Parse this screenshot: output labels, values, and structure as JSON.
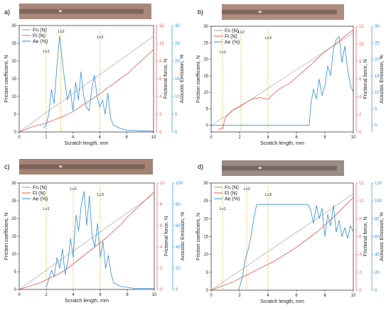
{
  "colors": {
    "fn": "#9a9a9a",
    "ft": "#f05454",
    "ae": "#2f8fd8",
    "lc": "#f2b233",
    "left_axis": "#222222",
    "right_axis_ft": "#f05454",
    "right_axis_ae": "#2f8fd8"
  },
  "chart_data": [
    {
      "panel": "a)",
      "type": "line",
      "xlabel": "Scratch length, mm",
      "ylabel_left": "Friction coefficient, N",
      "ylabel_ft": "Frictional force, N",
      "ylabel_ae": "Acoustic Emission, %",
      "xlim": [
        0,
        10
      ],
      "x_ticks": [
        "0",
        "2",
        "4",
        "6",
        "8",
        "10"
      ],
      "left_ylim": [
        0,
        30
      ],
      "left_ticks": [
        "0",
        "5",
        "10",
        "15",
        "20",
        "25",
        "30"
      ],
      "ft_ylim": [
        0,
        12
      ],
      "ft_ticks": [
        "0",
        "2",
        "4",
        "6",
        "8",
        "10",
        "12"
      ],
      "ae_ylim": [
        0,
        30
      ],
      "ae_ticks": [
        "0",
        "5",
        "10",
        "15",
        "20",
        "25",
        "30"
      ],
      "legend": [
        "Fn (N)",
        "Ft  (N)",
        "Ae (%)"
      ],
      "critical_loads": [
        {
          "label": "Lc1",
          "x": 2.0
        },
        {
          "label": "Lc2",
          "x": 3.1
        },
        {
          "label": "Lc3",
          "x": 6.0
        }
      ],
      "series": [
        {
          "name": "Fn (N)",
          "axis": "left",
          "x": [
            0,
            10
          ],
          "y": [
            0,
            27
          ]
        },
        {
          "name": "Ft  (N)",
          "axis": "ft",
          "x": [
            0,
            0.5,
            1,
            1.5,
            2,
            2.5,
            3,
            3.5,
            4,
            4.5,
            5,
            5.5,
            6,
            6.5,
            7,
            7.5,
            8,
            8.5,
            9,
            9.5,
            10
          ],
          "y": [
            0,
            0.3,
            0.6,
            0.8,
            1.0,
            1.3,
            1.6,
            1.9,
            2.3,
            2.8,
            3.3,
            3.8,
            4.3,
            4.9,
            5.4,
            6.0,
            6.5,
            7.2,
            7.9,
            8.6,
            9.3
          ]
        },
        {
          "name": "Ae (%)",
          "axis": "ae",
          "x": [
            1.8,
            2.0,
            2.2,
            2.4,
            2.6,
            2.8,
            3.0,
            3.1,
            3.2,
            3.4,
            3.6,
            3.8,
            4.0,
            4.2,
            4.4,
            4.6,
            4.8,
            5.0,
            5.2,
            5.4,
            5.6,
            5.8,
            6.0,
            6.2,
            6.4,
            6.6,
            6.8,
            7.0,
            7.5,
            8,
            8.5,
            9,
            9.5,
            10
          ],
          "y": [
            1,
            2,
            5,
            12,
            8,
            18,
            27,
            24,
            20,
            14,
            9,
            12,
            6,
            14,
            9,
            17,
            10,
            7,
            6,
            12,
            16,
            10,
            7,
            9,
            5,
            11,
            4,
            2,
            1,
            0.5,
            0.5,
            0.3,
            0.3,
            0.2
          ]
        }
      ]
    },
    {
      "panel": "b)",
      "type": "line",
      "xlabel": "Scratch length, mm",
      "ylabel_left": "Friction coefficient, N",
      "ylabel_ft": "Frictional force, N",
      "ylabel_ae": "Acoustic Emission, %",
      "xlim": [
        0,
        10
      ],
      "x_ticks": [
        "0",
        "2",
        "4",
        "6",
        "8",
        "10"
      ],
      "left_ylim": [
        -2,
        30
      ],
      "left_ticks": [
        "0",
        "5",
        "10",
        "15",
        "20",
        "25",
        "30"
      ],
      "ft_ylim": [
        0,
        12
      ],
      "ft_ticks": [
        "0",
        "2",
        "4",
        "6",
        "8",
        "10",
        "12"
      ],
      "ae_ylim": [
        -2,
        30
      ],
      "ae_ticks": [
        "0",
        "5",
        "10",
        "15",
        "20",
        "25",
        "30"
      ],
      "legend": [
        "Fn (N)",
        "Ft  (N)",
        "Ae (%)"
      ],
      "critical_loads": [
        {
          "label": "Lc1",
          "x": 0.8
        },
        {
          "label": "Lc2",
          "x": 2.1
        },
        {
          "label": "Lc3",
          "x": 4.0
        }
      ],
      "series": [
        {
          "name": "Fn (N)",
          "axis": "left",
          "x": [
            0,
            10
          ],
          "y": [
            0,
            28
          ]
        },
        {
          "name": "Ft  (N)",
          "axis": "ft",
          "x": [
            0.5,
            0.8,
            1,
            1.5,
            2,
            2.5,
            3,
            3.5,
            4,
            4.5,
            5,
            5.5,
            6,
            6.5,
            7,
            7.5,
            8,
            8.5,
            9,
            9.5,
            10
          ],
          "y": [
            0.3,
            0.4,
            1.6,
            2.5,
            2.9,
            3.4,
            3.8,
            3.9,
            3.7,
            4.5,
            5.1,
            5.5,
            6.2,
            6.9,
            7.6,
            8.4,
            9.1,
            9.7,
            10.3,
            11.0,
            11.6
          ]
        },
        {
          "name": "Ae (%)",
          "axis": "ae",
          "x": [
            0,
            1,
            2,
            3,
            4,
            5,
            6,
            6.9,
            7.0,
            7.2,
            7.4,
            7.6,
            7.8,
            8.0,
            8.2,
            8.4,
            8.6,
            8.8,
            9.0,
            9.2,
            9.4,
            9.6,
            9.8,
            10
          ],
          "y": [
            0,
            0,
            0,
            0,
            0,
            0,
            0,
            0,
            6,
            11,
            8,
            14,
            9,
            12,
            18,
            15,
            23,
            26,
            27,
            19,
            24,
            17,
            12,
            10
          ]
        }
      ]
    },
    {
      "panel": "c)",
      "type": "line",
      "xlabel": "Scratch length, mm",
      "ylabel_left": "Friction coefficient, N",
      "ylabel_ft": "Frictional force, N",
      "ylabel_ae": "Acoustic Emission, %",
      "xlim": [
        0,
        10
      ],
      "x_ticks": [
        "0",
        "2",
        "4",
        "6",
        "8",
        "10"
      ],
      "left_ylim": [
        0,
        30
      ],
      "left_ticks": [
        "0",
        "5",
        "10",
        "15",
        "20",
        "25",
        "30"
      ],
      "ft_ylim": [
        0,
        10
      ],
      "ft_ticks": [
        "0",
        "2",
        "4",
        "6",
        "8",
        "10"
      ],
      "ae_ylim": [
        0,
        100
      ],
      "ae_ticks": [
        "0",
        "20",
        "40",
        "60",
        "80",
        "100"
      ],
      "legend": [
        "Fn (N)",
        "Ft  (N)",
        "Ae (%)"
      ],
      "critical_loads": [
        {
          "label": "Lc1",
          "x": 2.0
        },
        {
          "label": "Lc2",
          "x": 4.0
        },
        {
          "label": "Lc3",
          "x": 6.0
        }
      ],
      "series": [
        {
          "name": "Fn (N)",
          "axis": "left",
          "x": [
            0,
            10
          ],
          "y": [
            0,
            27
          ]
        },
        {
          "name": "Ft  (N)",
          "axis": "ft",
          "x": [
            0,
            0.5,
            1,
            1.5,
            2,
            2.5,
            3,
            3.5,
            4,
            4.5,
            5,
            5.5,
            6,
            6.5,
            7,
            7.5,
            8,
            8.5,
            9,
            9.5,
            10
          ],
          "y": [
            0,
            0.2,
            0.4,
            0.6,
            0.9,
            1.2,
            1.5,
            1.9,
            2.4,
            2.9,
            3.4,
            3.9,
            4.4,
            4.9,
            5.5,
            6.1,
            6.8,
            7.4,
            8.0,
            8.6,
            9.2
          ]
        },
        {
          "name": "Ae (%)",
          "axis": "ae",
          "x": [
            2.0,
            2.2,
            2.4,
            2.6,
            2.8,
            3.0,
            3.2,
            3.4,
            3.6,
            3.8,
            4.0,
            4.2,
            4.4,
            4.6,
            4.8,
            5.0,
            5.2,
            5.4,
            5.6,
            5.8,
            6.0,
            6.2,
            6.4,
            6.6,
            6.8,
            7.0,
            7.5,
            8,
            8.5,
            9,
            9.5,
            10
          ],
          "y": [
            2,
            10,
            18,
            12,
            30,
            20,
            38,
            14,
            26,
            48,
            30,
            70,
            55,
            80,
            92,
            60,
            88,
            50,
            40,
            62,
            30,
            45,
            20,
            32,
            15,
            6,
            3,
            2,
            1,
            1,
            1,
            1
          ]
        }
      ]
    },
    {
      "panel": "d)",
      "type": "line",
      "xlabel": "Scratch length, mm",
      "ylabel_left": "Friction coefficient, N",
      "ylabel_ft": "Frictional force, N",
      "ylabel_ae": "Acoustic Emission, %",
      "xlim": [
        0,
        10
      ],
      "x_ticks": [
        "0",
        "2",
        "4",
        "6",
        "8",
        "10"
      ],
      "left_ylim": [
        0,
        30
      ],
      "left_ticks": [
        "0",
        "5",
        "10",
        "15",
        "20",
        "25",
        "30"
      ],
      "ft_ylim": [
        0,
        12
      ],
      "ft_ticks": [
        "0",
        "2",
        "4",
        "6",
        "8",
        "10",
        "12"
      ],
      "ae_ylim": [
        0,
        120
      ],
      "ae_ticks": [
        "0",
        "20",
        "40",
        "60",
        "80",
        "100",
        "120"
      ],
      "legend": [
        "Fn (N)",
        "Ft  (N)",
        "Ae (%)"
      ],
      "critical_loads": [
        {
          "label": "Lc1",
          "x": 0.8
        },
        {
          "label": "Lc2",
          "x": 2.5
        },
        {
          "label": "Lc3",
          "x": 4.0
        }
      ],
      "series": [
        {
          "name": "Fn (N)",
          "axis": "left",
          "x": [
            0,
            10
          ],
          "y": [
            0,
            27
          ]
        },
        {
          "name": "Ft  (N)",
          "axis": "ft",
          "x": [
            0,
            0.5,
            1,
            1.5,
            2,
            2.5,
            3,
            3.5,
            4,
            4.5,
            5,
            5.5,
            6,
            6.5,
            7,
            7.5,
            8,
            8.5,
            9,
            9.5,
            10
          ],
          "y": [
            0,
            0.3,
            0.6,
            0.9,
            1.3,
            1.7,
            2.1,
            2.5,
            2.9,
            3.3,
            3.8,
            4.3,
            4.8,
            5.4,
            6.0,
            6.6,
            7.3,
            8.0,
            8.8,
            9.6,
            10.4
          ]
        },
        {
          "name": "Ae (%)",
          "axis": "ae",
          "x": [
            1.9,
            2.0,
            2.2,
            2.4,
            2.6,
            2.8,
            3.0,
            3.2,
            3.4,
            3.6,
            4.0,
            5.0,
            6.0,
            6.8,
            7.0,
            7.2,
            7.4,
            7.6,
            7.8,
            8.0,
            8.2,
            8.4,
            8.6,
            8.8,
            9.0,
            9.2,
            9.4,
            9.6,
            9.8,
            10
          ],
          "y": [
            0,
            3,
            15,
            35,
            45,
            60,
            80,
            96,
            96,
            96,
            96,
            96,
            96,
            96,
            90,
            75,
            95,
            80,
            92,
            60,
            85,
            72,
            95,
            65,
            78,
            60,
            70,
            58,
            72,
            65
          ]
        }
      ]
    }
  ]
}
